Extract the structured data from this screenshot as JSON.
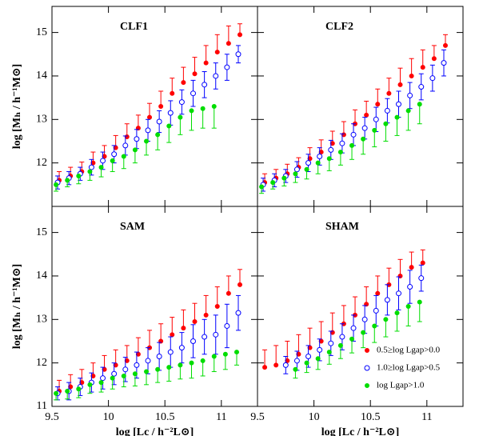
{
  "chart_data": [
    {
      "type": "scatter",
      "title": "CLF1",
      "y_label": "log [Mₕ / h⁻¹M⊙]",
      "x": [
        9.55,
        9.65,
        9.75,
        9.85,
        9.95,
        10.05,
        10.15,
        10.25,
        10.35,
        10.45,
        10.55,
        10.65,
        10.75,
        10.85,
        10.95,
        11.05,
        11.15
      ],
      "xlim": [
        9.5,
        11.32
      ],
      "ylim": [
        11,
        15.6
      ],
      "xticks": [
        9.5,
        10,
        10.5,
        11
      ],
      "yticks": [
        12,
        13,
        14,
        15
      ],
      "xtick_labels": false,
      "ytick_labels": true,
      "series": [
        {
          "name": "0.5≥log Lgap>0.0",
          "color": "#ff0000",
          "marker": "filled",
          "error_direction": "up",
          "values": [
            11.6,
            11.7,
            11.8,
            12.0,
            12.15,
            12.35,
            12.6,
            12.8,
            13.05,
            13.3,
            13.6,
            13.85,
            14.05,
            14.3,
            14.55,
            14.75,
            14.95
          ],
          "errors": [
            0.2,
            0.2,
            0.22,
            0.25,
            0.25,
            0.28,
            0.3,
            0.3,
            0.32,
            0.35,
            0.35,
            0.35,
            0.38,
            0.4,
            0.4,
            0.4,
            0.25
          ]
        },
        {
          "name": "1.0≥log Lgap>0.5",
          "color": "#0000ff",
          "marker": "open",
          "error_direction": "both",
          "values": [
            11.55,
            11.65,
            11.75,
            11.9,
            12.05,
            12.2,
            12.4,
            12.55,
            12.75,
            12.95,
            13.15,
            13.4,
            13.6,
            13.8,
            14.0,
            14.2,
            14.5
          ],
          "errors": [
            0.15,
            0.15,
            0.15,
            0.18,
            0.2,
            0.2,
            0.22,
            0.22,
            0.25,
            0.25,
            0.28,
            0.28,
            0.3,
            0.3,
            0.3,
            0.3,
            0.2
          ]
        },
        {
          "name": "log Lgap>1.0",
          "color": "#00dd00",
          "marker": "filled",
          "error_direction": "down",
          "values": [
            11.5,
            11.6,
            11.7,
            11.8,
            11.9,
            12.05,
            12.15,
            12.3,
            12.5,
            12.65,
            12.85,
            13.05,
            13.2,
            13.25,
            13.3,
            null,
            null
          ],
          "errors": [
            0.15,
            0.15,
            0.18,
            0.2,
            0.22,
            0.25,
            0.28,
            0.3,
            0.32,
            0.35,
            0.38,
            0.4,
            0.45,
            0.45,
            0.5,
            null,
            null
          ]
        }
      ]
    },
    {
      "type": "scatter",
      "title": "CLF2",
      "x": [
        9.55,
        9.65,
        9.75,
        9.85,
        9.95,
        10.05,
        10.15,
        10.25,
        10.35,
        10.45,
        10.55,
        10.65,
        10.75,
        10.85,
        10.95,
        11.05,
        11.15
      ],
      "xlim": [
        9.5,
        11.32
      ],
      "ylim": [
        11,
        15.6
      ],
      "xticks": [
        9.5,
        10,
        10.5,
        11
      ],
      "yticks": [
        11,
        12,
        13,
        14,
        15
      ],
      "xtick_labels": false,
      "ytick_labels": false,
      "series": [
        {
          "name": "0.5≥log Lgap>0.0",
          "color": "#ff0000",
          "marker": "filled",
          "error_direction": "up",
          "values": [
            11.55,
            11.65,
            11.75,
            11.9,
            12.1,
            12.25,
            12.45,
            12.65,
            12.9,
            13.1,
            13.35,
            13.6,
            13.8,
            14.0,
            14.2,
            14.4,
            14.7
          ],
          "errors": [
            0.2,
            0.2,
            0.22,
            0.22,
            0.25,
            0.28,
            0.28,
            0.3,
            0.32,
            0.32,
            0.35,
            0.35,
            0.38,
            0.4,
            0.4,
            0.3,
            0.25
          ]
        },
        {
          "name": "1.0≥log Lgap>0.5",
          "color": "#0000ff",
          "marker": "open",
          "error_direction": "both",
          "values": [
            11.5,
            11.6,
            11.7,
            11.85,
            12.0,
            12.15,
            12.3,
            12.45,
            12.65,
            12.8,
            13.0,
            13.2,
            13.35,
            13.55,
            13.75,
            13.95,
            14.3
          ],
          "errors": [
            0.15,
            0.15,
            0.15,
            0.18,
            0.2,
            0.2,
            0.22,
            0.22,
            0.25,
            0.25,
            0.28,
            0.28,
            0.3,
            0.3,
            0.3,
            0.3,
            0.3
          ]
        },
        {
          "name": "log Lgap>1.0",
          "color": "#00dd00",
          "marker": "filled",
          "error_direction": "down",
          "values": [
            11.45,
            11.55,
            11.65,
            11.75,
            11.85,
            12.0,
            12.1,
            12.25,
            12.4,
            12.55,
            12.75,
            12.9,
            13.05,
            13.2,
            13.35,
            null,
            null
          ],
          "errors": [
            0.15,
            0.15,
            0.18,
            0.2,
            0.22,
            0.25,
            0.28,
            0.3,
            0.32,
            0.35,
            0.38,
            0.4,
            0.42,
            0.45,
            0.45,
            null,
            null
          ]
        }
      ]
    },
    {
      "type": "scatter",
      "title": "SAM",
      "y_label": "log [Mₕ / h⁻¹M⊙]",
      "x_label": "log [Lc / h⁻²L⊙]",
      "x": [
        9.55,
        9.65,
        9.75,
        9.85,
        9.95,
        10.05,
        10.15,
        10.25,
        10.35,
        10.45,
        10.55,
        10.65,
        10.75,
        10.85,
        10.95,
        11.05,
        11.15
      ],
      "xlim": [
        9.5,
        11.32
      ],
      "ylim": [
        11,
        15.6
      ],
      "xticks": [
        9.5,
        10,
        10.5,
        11
      ],
      "yticks": [
        11,
        12,
        13,
        14,
        15
      ],
      "xtick_labels": true,
      "ytick_labels": true,
      "series": [
        {
          "name": "0.5≥log Lgap>0.0",
          "color": "#ff0000",
          "marker": "filled",
          "error_direction": "up",
          "values": [
            11.35,
            11.45,
            11.55,
            11.7,
            11.85,
            11.95,
            12.05,
            12.2,
            12.35,
            12.5,
            12.65,
            12.8,
            12.95,
            13.1,
            13.3,
            13.6,
            13.8
          ],
          "errors": [
            0.25,
            0.28,
            0.3,
            0.3,
            0.32,
            0.35,
            0.35,
            0.38,
            0.4,
            0.4,
            0.4,
            0.42,
            0.42,
            0.45,
            0.45,
            0.4,
            0.35
          ]
        },
        {
          "name": "1.0≥log Lgap>0.5",
          "color": "#0000ff",
          "marker": "open",
          "error_direction": "both",
          "values": [
            11.3,
            11.35,
            11.45,
            11.55,
            11.65,
            11.75,
            11.85,
            11.95,
            12.05,
            12.15,
            12.25,
            12.35,
            12.5,
            12.6,
            12.65,
            12.85,
            13.15
          ],
          "errors": [
            0.15,
            0.2,
            0.2,
            0.22,
            0.25,
            0.25,
            0.28,
            0.3,
            0.3,
            0.32,
            0.35,
            0.35,
            0.38,
            0.4,
            0.45,
            0.5,
            0.4
          ]
        },
        {
          "name": "log Lgap>1.0",
          "color": "#00dd00",
          "marker": "filled",
          "error_direction": "down",
          "values": [
            11.3,
            11.35,
            11.4,
            11.5,
            11.55,
            11.65,
            11.7,
            11.75,
            11.8,
            11.85,
            11.9,
            11.95,
            12.0,
            12.05,
            12.15,
            12.2,
            12.25
          ],
          "errors": [
            0.15,
            0.18,
            0.2,
            0.2,
            0.22,
            0.25,
            0.25,
            0.28,
            0.3,
            0.3,
            0.32,
            0.32,
            0.35,
            0.35,
            0.35,
            0.35,
            0.3
          ]
        }
      ]
    },
    {
      "type": "scatter",
      "title": "SHAM",
      "x_label": "log [Lc / h⁻²L⊙]",
      "legend": "lower right",
      "x": [
        9.55,
        9.65,
        9.75,
        9.85,
        9.95,
        10.05,
        10.15,
        10.25,
        10.35,
        10.45,
        10.55,
        10.65,
        10.75,
        10.85,
        10.95
      ],
      "xlim": [
        9.5,
        11.32
      ],
      "ylim": [
        11,
        15.6
      ],
      "xticks": [
        9.5,
        10,
        10.5,
        11
      ],
      "yticks": [
        11,
        12,
        13,
        14,
        15
      ],
      "xtick_labels": true,
      "ytick_labels": false,
      "series": [
        {
          "name": "0.5≥log Lgap>0.0",
          "color": "#ff0000",
          "marker": "filled",
          "error_direction": "up",
          "values": [
            11.9,
            11.95,
            12.05,
            12.2,
            12.35,
            12.5,
            12.7,
            12.9,
            13.1,
            13.35,
            13.6,
            13.8,
            14.0,
            14.2,
            14.3
          ],
          "errors": [
            0.4,
            0.45,
            0.45,
            0.45,
            0.45,
            0.45,
            0.45,
            0.42,
            0.42,
            0.4,
            0.4,
            0.38,
            0.38,
            0.35,
            0.3
          ]
        },
        {
          "name": "1.0≥log Lgap>0.5",
          "color": "#0000ff",
          "marker": "open",
          "error_direction": "both",
          "values": [
            null,
            null,
            11.95,
            12.05,
            12.15,
            12.3,
            12.45,
            12.6,
            12.8,
            13.0,
            13.2,
            13.45,
            13.6,
            13.75,
            13.95
          ],
          "errors": [
            null,
            null,
            0.2,
            0.22,
            0.25,
            0.25,
            0.28,
            0.3,
            0.3,
            0.32,
            0.35,
            0.35,
            0.38,
            0.38,
            0.3
          ]
        },
        {
          "name": "log Lgap>1.0",
          "color": "#00dd00",
          "marker": "filled",
          "error_direction": "down",
          "values": [
            null,
            null,
            null,
            11.85,
            12.0,
            12.1,
            12.25,
            12.4,
            12.55,
            12.7,
            12.85,
            13.0,
            13.15,
            13.3,
            13.4
          ],
          "errors": [
            null,
            null,
            null,
            0.2,
            0.22,
            0.25,
            0.28,
            0.3,
            0.32,
            0.35,
            0.38,
            0.4,
            0.42,
            0.45,
            0.45
          ]
        }
      ]
    }
  ]
}
